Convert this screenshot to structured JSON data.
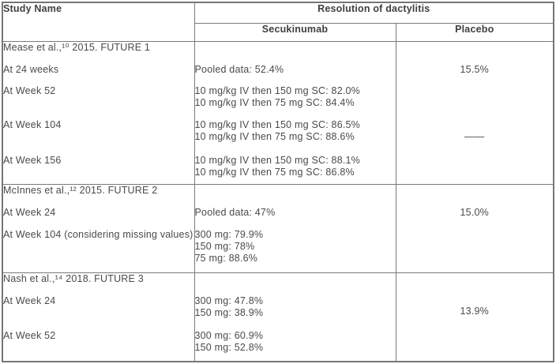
{
  "header": {
    "study_name": "Study Name",
    "group": "Resolution of dactylitis",
    "col_secukinumab": "Secukinumab",
    "col_placebo": "Placebo"
  },
  "sections": [
    {
      "title": "Mease et al.,¹⁰ 2015. FUTURE 1",
      "rows": [
        {
          "label": "At 24 weeks",
          "secukinumab": [
            "Pooled data: 52.4%"
          ],
          "placebo": "15.5%"
        },
        {
          "label": "At Week 52",
          "secukinumab": [
            "10 mg/kg IV then 150 mg SC: 82.0%",
            "10 mg/kg IV then 75 mg SC: 84.4%"
          ],
          "placebo": ""
        },
        {
          "label": "At Week 104",
          "secukinumab": [
            "10 mg/kg IV then 150 mg SC: 86.5%",
            "10 mg/kg IV then 75 mg SC: 88.6%"
          ],
          "placebo": "——"
        },
        {
          "label": "At Week 156",
          "secukinumab": [
            "10 mg/kg IV then 150 mg SC: 88.1%",
            "10 mg/kg IV then 75 mg SC: 86.8%"
          ],
          "placebo": ""
        }
      ]
    },
    {
      "title": "McInnes et al.,¹² 2015. FUTURE 2",
      "rows": [
        {
          "label": "At Week 24",
          "secukinumab": [
            "Pooled data: 47%"
          ],
          "placebo": "15.0%"
        },
        {
          "label": "At Week 104 (considering missing values)",
          "secukinumab": [
            "300 mg: 79.9%",
            "150 mg: 78%",
            "75 mg: 88.6%"
          ],
          "placebo": ""
        }
      ]
    },
    {
      "title": "Nash et al.,¹⁴ 2018. FUTURE 3",
      "rows": [
        {
          "label": "At Week 24",
          "secukinumab": [
            "300 mg: 47.8%",
            "150 mg: 38.9%"
          ],
          "placebo": "13.9%"
        },
        {
          "label": "At Week 52",
          "secukinumab": [
            "300 mg: 60.9%",
            "150 mg: 52.8%"
          ],
          "placebo": ""
        }
      ]
    }
  ],
  "colors": {
    "border": "#7a7a7a",
    "text": "#4a4a4a",
    "header_text": "#3f3f3f"
  }
}
